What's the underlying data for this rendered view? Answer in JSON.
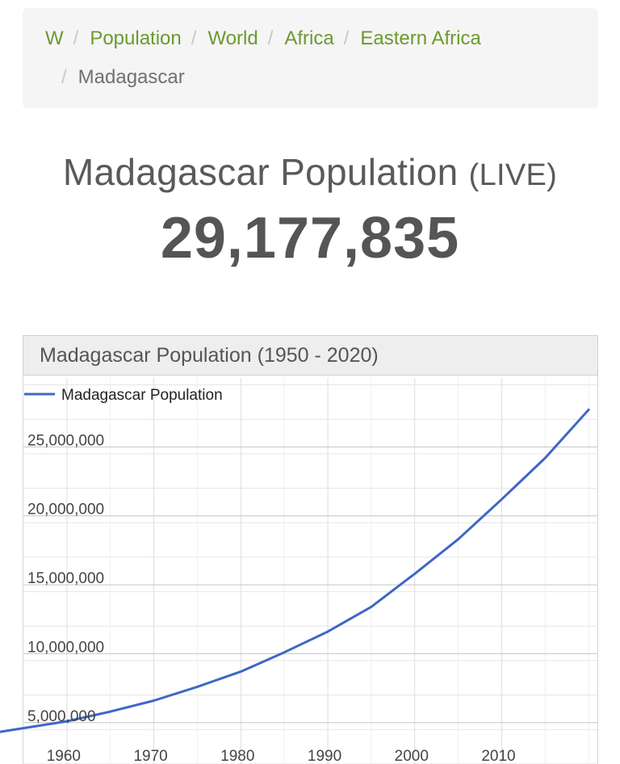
{
  "breadcrumb": {
    "items": [
      {
        "label": "W"
      },
      {
        "label": "Population"
      },
      {
        "label": "World"
      },
      {
        "label": "Africa"
      },
      {
        "label": "Eastern Africa"
      }
    ],
    "current": "Madagascar"
  },
  "page": {
    "title": "Madagascar Population",
    "live_tag": "(LIVE)",
    "counter": "29,177,835"
  },
  "colors": {
    "link": "#6b9a2f",
    "series": "#3f66c8",
    "grid": "#e6e6e6"
  },
  "chart_data": {
    "type": "line",
    "title": "Madagascar Population (1950 - 2020)",
    "legend_position": "top-left",
    "xlim": [
      1955,
      2021
    ],
    "ylim": [
      2000000,
      30000000
    ],
    "x_ticks": [
      1960,
      1970,
      1980,
      1990,
      2000,
      2010
    ],
    "x_tick_labels": [
      "1960",
      "1970",
      "1980",
      "1990",
      "2000",
      "2010"
    ],
    "y_ticks": [
      5000000,
      10000000,
      15000000,
      20000000,
      25000000
    ],
    "y_tick_labels": [
      "5,000,000",
      "10,000,000",
      "15,000,000",
      "20,000,000",
      "25,000,000"
    ],
    "grid": true,
    "series": [
      {
        "name": "Madagascar Population",
        "x": [
          1950,
          1955,
          1960,
          1965,
          1970,
          1975,
          1980,
          1985,
          1990,
          1995,
          2000,
          2005,
          2010,
          2015,
          2020
        ],
        "y": [
          4100000,
          4600000,
          5100000,
          5800000,
          6600000,
          7600000,
          8700000,
          10100000,
          11600000,
          13400000,
          15800000,
          18300000,
          21200000,
          24200000,
          27700000
        ]
      }
    ]
  }
}
